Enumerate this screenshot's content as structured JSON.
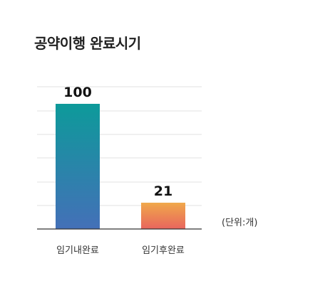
{
  "chart_data": {
    "type": "bar",
    "title": "공약이행 완료시기",
    "categories": [
      "임기내완료",
      "임기후완료"
    ],
    "values": [
      100,
      21
    ],
    "value_labels": [
      "100",
      "21"
    ],
    "unit": "(단위:개)",
    "ylim": [
      0,
      105
    ],
    "grid": true,
    "colors": {
      "bar1_top": "#0d9a9a",
      "bar1_bottom": "#4470b8",
      "bar2_top": "#f0a84a",
      "bar2_bottom": "#e8655e",
      "grid": "#e2e2e2",
      "axis": "#333333"
    }
  }
}
